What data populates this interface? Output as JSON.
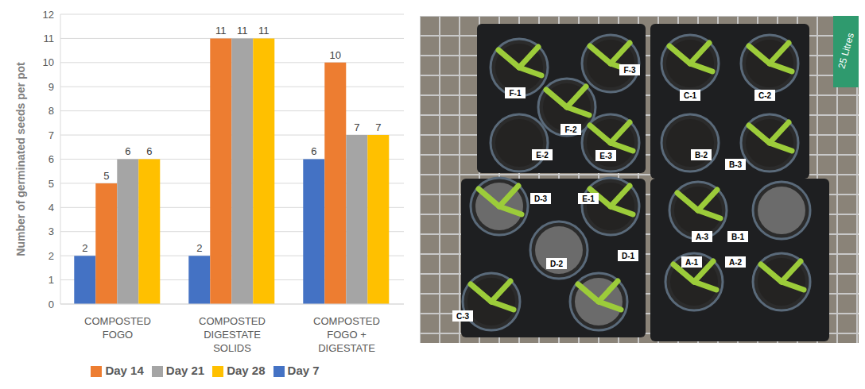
{
  "chart_data": {
    "type": "bar",
    "y_label": "Number of germinated seeds per pot",
    "categories": [
      "COMPOSTED FOGO",
      "COMPOSTED DIGESTATE SOLIDS",
      "COMPOSTED FOGO + DIGESTATE"
    ],
    "series": [
      {
        "name": "Day 7",
        "color": "#4472c4",
        "values": [
          2,
          2,
          6
        ]
      },
      {
        "name": "Day 14",
        "color": "#ed7d31",
        "values": [
          5,
          11,
          10
        ]
      },
      {
        "name": "Day 21",
        "color": "#a5a5a5",
        "values": [
          6,
          11,
          7
        ]
      },
      {
        "name": "Day 28",
        "color": "#ffc000",
        "values": [
          6,
          11,
          7
        ]
      }
    ],
    "ylim": [
      0,
      12
    ],
    "yticks": [
      0,
      1,
      2,
      3,
      4,
      5,
      6,
      7,
      8,
      9,
      10,
      11,
      12
    ],
    "grid": true,
    "legend": "bottom",
    "data_labels": true
  },
  "photo": {
    "pot_labels": [
      "F-1",
      "F-3",
      "F-2",
      "E-2",
      "E-3",
      "C-1",
      "C-2",
      "B-2",
      "B-3",
      "D-3",
      "E-1",
      "D-2",
      "D-1",
      "C-3",
      "A-3",
      "B-1",
      "A-1",
      "A-2"
    ],
    "bag_text": "25 Litres"
  }
}
